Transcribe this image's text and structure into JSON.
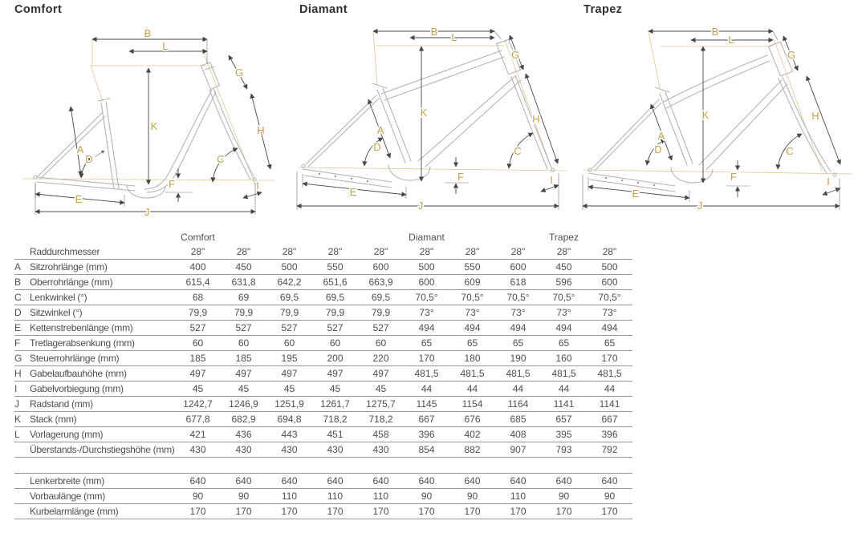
{
  "colors": {
    "accent_gold": "#C2A147",
    "gold_construction": "#dbc98f",
    "frame_gray": "#b4b4b4",
    "dimension_line": "#474747",
    "table_rule": "#989898",
    "body_text": "#4e4e4e",
    "title_text": "#2e2e33"
  },
  "letters": {
    "A": "A",
    "B": "B",
    "C": "C",
    "D": "D",
    "E": "E",
    "F": "F",
    "G": "G",
    "H": "H",
    "I": "I",
    "J": "J",
    "K": "K",
    "L": "L"
  },
  "diagrams": [
    {
      "title": "Comfort"
    },
    {
      "title": "Diamant"
    },
    {
      "title": "Trapez"
    }
  ],
  "table": {
    "group_row": [
      "Comfort",
      "",
      "",
      "",
      "",
      "Diamant",
      "",
      "",
      "Trapez",
      ""
    ],
    "wheel_row": {
      "letter": "",
      "label": "Raddurchmesser",
      "values": [
        "28\"",
        "28\"",
        "28\"",
        "28\"",
        "28\"",
        "28\"",
        "28\"",
        "28\"",
        "28\"",
        "28\""
      ]
    },
    "rows": [
      {
        "letter": "A",
        "label": "Sitzrohrlänge (mm)",
        "values": [
          "400",
          "450",
          "500",
          "550",
          "600",
          "500",
          "550",
          "600",
          "450",
          "500"
        ]
      },
      {
        "letter": "B",
        "label": "Oberrohrlänge (mm)",
        "values": [
          "615,4",
          "631,8",
          "642,2",
          "651,6",
          "663,9",
          "600",
          "609",
          "618",
          "596",
          "600"
        ]
      },
      {
        "letter": "C",
        "label": "Lenkwinkel (°)",
        "values": [
          "68",
          "69",
          "69,5",
          "69,5",
          "69,5",
          "70,5°",
          "70,5°",
          "70,5°",
          "70,5°",
          "70,5°"
        ]
      },
      {
        "letter": "D",
        "label": "Sitzwinkel (°)",
        "values": [
          "79,9",
          "79,9",
          "79,9",
          "79,9",
          "79,9",
          "73°",
          "73°",
          "73°",
          "73°",
          "73°"
        ]
      },
      {
        "letter": "E",
        "label": "Kettenstrebenlänge (mm)",
        "values": [
          "527",
          "527",
          "527",
          "527",
          "527",
          "494",
          "494",
          "494",
          "494",
          "494"
        ]
      },
      {
        "letter": "F",
        "label": "Tretlagerabsenkung (mm)",
        "values": [
          "60",
          "60",
          "60",
          "60",
          "60",
          "65",
          "65",
          "65",
          "65",
          "65"
        ]
      },
      {
        "letter": "G",
        "label": "Steuerrohrlänge (mm)",
        "values": [
          "185",
          "185",
          "195",
          "200",
          "220",
          "170",
          "180",
          "190",
          "160",
          "170"
        ]
      },
      {
        "letter": "H",
        "label": "Gabelaufbauhöhe (mm)",
        "values": [
          "497",
          "497",
          "497",
          "497",
          "497",
          "481,5",
          "481,5",
          "481,5",
          "481,5",
          "481,5"
        ]
      },
      {
        "letter": "I",
        "label": "Gabelvorbiegung (mm)",
        "values": [
          "45",
          "45",
          "45",
          "45",
          "45",
          "44",
          "44",
          "44",
          "44",
          "44"
        ]
      },
      {
        "letter": "J",
        "label": "Radstand (mm)",
        "values": [
          "1242,7",
          "1246,9",
          "1251,9",
          "1261,7",
          "1275,7",
          "1145",
          "1154",
          "1164",
          "1141",
          "1141"
        ]
      },
      {
        "letter": "K",
        "label": "Stack (mm)",
        "values": [
          "677,8",
          "682,9",
          "694,8",
          "718,2",
          "718,2",
          "667",
          "676",
          "685",
          "657",
          "667"
        ]
      },
      {
        "letter": "L",
        "label": "Vorlagerung (mm)",
        "values": [
          "421",
          "436",
          "443",
          "451",
          "458",
          "396",
          "402",
          "408",
          "395",
          "396"
        ]
      },
      {
        "letter": "",
        "label": "Überstands-/Durchstiegshöhe (mm)",
        "values": [
          "430",
          "430",
          "430",
          "430",
          "430",
          "854",
          "882",
          "907",
          "793",
          "792"
        ]
      }
    ],
    "lower_rows": [
      {
        "letter": "",
        "label": "Lenkerbreite (mm)",
        "values": [
          "640",
          "640",
          "640",
          "640",
          "640",
          "640",
          "640",
          "640",
          "640",
          "640"
        ]
      },
      {
        "letter": "",
        "label": "Vorbaulänge (mm)",
        "values": [
          "90",
          "90",
          "110",
          "110",
          "110",
          "90",
          "90",
          "110",
          "90",
          "90"
        ]
      },
      {
        "letter": "",
        "label": "Kurbelarmlänge (mm)",
        "values": [
          "170",
          "170",
          "170",
          "170",
          "170",
          "170",
          "170",
          "170",
          "170",
          "170"
        ]
      }
    ]
  }
}
